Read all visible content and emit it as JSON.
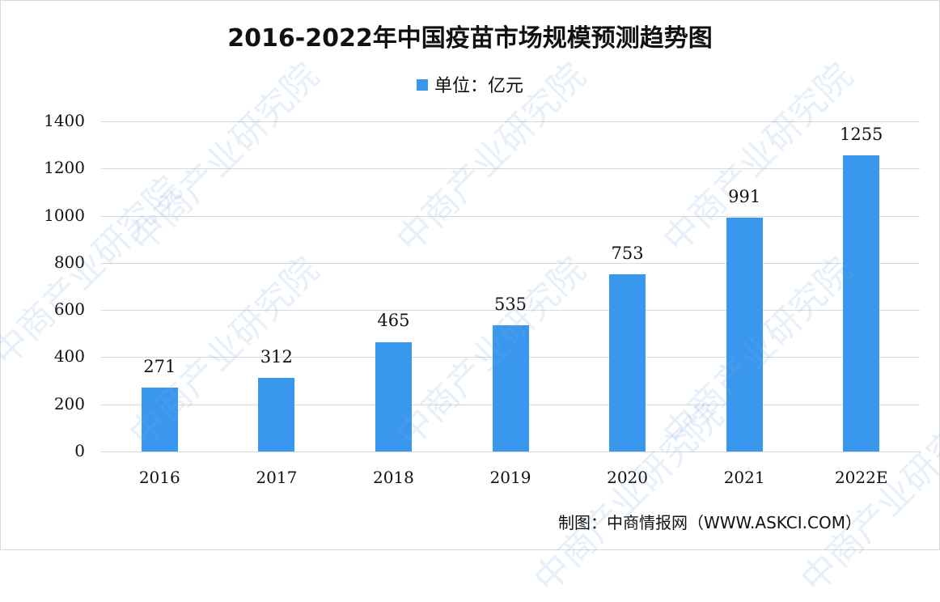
{
  "chart_data": {
    "type": "bar",
    "title": "2016-2022年中国疫苗市场规模预测趋势图",
    "legend": [
      "单位：亿元"
    ],
    "legend_position": "top",
    "categories": [
      "2016",
      "2017",
      "2018",
      "2019",
      "2020",
      "2021",
      "2022E"
    ],
    "values": [
      271,
      312,
      465,
      535,
      753,
      991,
      1255
    ],
    "value_labels": [
      "271",
      "312",
      "465",
      "535",
      "753",
      "991",
      "1255"
    ],
    "xlabel": "",
    "ylabel": "",
    "ylim": [
      0,
      1400
    ],
    "yticks": [
      "0",
      "200",
      "400",
      "600",
      "800",
      "1000",
      "1200",
      "1400"
    ],
    "grid": true,
    "bar_color": "#3a97ee",
    "source": "制图：中商情报网（WWW.ASKCI.COM）"
  },
  "watermark": "中商产业研究院"
}
